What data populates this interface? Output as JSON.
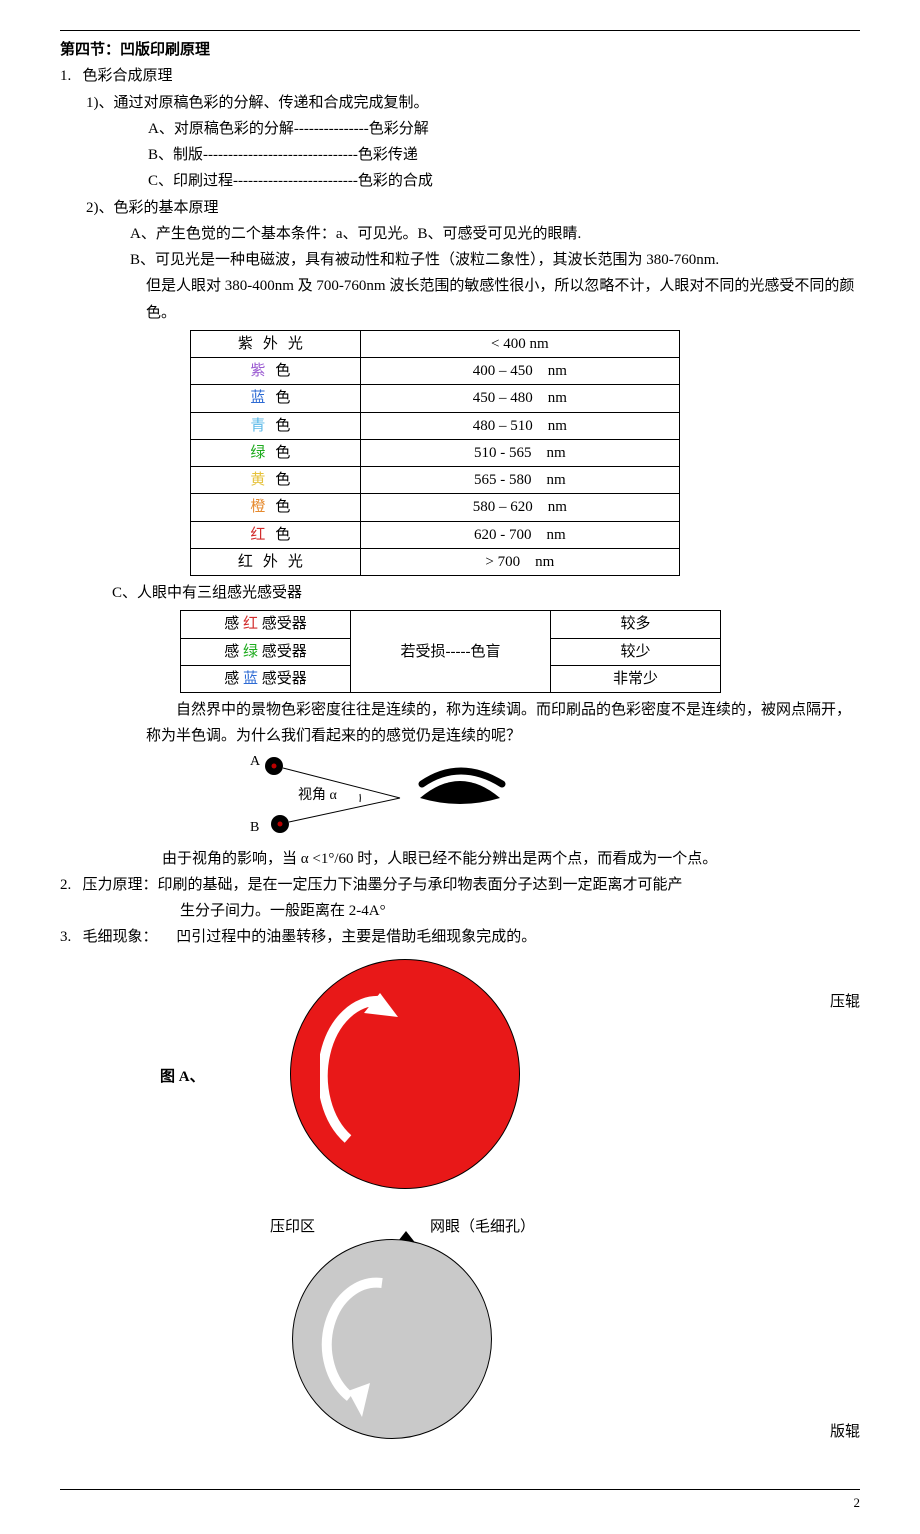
{
  "section_title": "第四节：凹版印刷原理",
  "item1_num": "1.",
  "item1_head": "色彩合成原理",
  "item1_1": "1)、通过对原稿色彩的分解、传递和合成完成复制。",
  "item1_1_A": "A、对原稿色彩的分解---------------色彩分解",
  "item1_1_B": "B、制版-------------------------------色彩传递",
  "item1_1_C": "C、印刷过程-------------------------色彩的合成",
  "item1_2": "2)、色彩的基本原理",
  "item1_2_A": "A、产生色觉的二个基本条件：a、可见光。B、可感受可见光的眼睛.",
  "item1_2_B_l1": "B、可见光是一种电磁波，具有被动性和粒子性（波粒二象性），其波长范围为 380-760nm.",
  "item1_2_B_l2": "但是人眼对 380-400nm 及 700-760nm 波长范围的敏感性很小，所以忽略不计，人眼对不同的光感受不同的颜色。",
  "color_table": {
    "rows": [
      {
        "label_pre": "紫外",
        "label_post": "光",
        "color": "#000000",
        "range": "< 400 nm"
      },
      {
        "label_pre": "紫",
        "label_post": "色",
        "color": "#9a5ad1",
        "range": "400 – 450 nm"
      },
      {
        "label_pre": "蓝",
        "label_post": "色",
        "color": "#2e6bd4",
        "range": "450 – 480 nm"
      },
      {
        "label_pre": "青",
        "label_post": "色",
        "color": "#5bb9e8",
        "range": "480 – 510 nm"
      },
      {
        "label_pre": "绿",
        "label_post": "色",
        "color": "#1eab1e",
        "range": "510 - 565 nm"
      },
      {
        "label_pre": "黄",
        "label_post": "色",
        "color": "#e6c23c",
        "range": "565 - 580 nm"
      },
      {
        "label_pre": "橙",
        "label_post": "色",
        "color": "#e68a2e",
        "range": "580 – 620 nm"
      },
      {
        "label_pre": "红",
        "label_post": "色",
        "color": "#d22d2d",
        "range": "620 - 700 nm"
      },
      {
        "label_pre": "红外",
        "label_post": "光",
        "color": "#000000",
        "range": "> 700 nm"
      }
    ]
  },
  "item1_2_C": "C、人眼中有三组感光感受器",
  "receptor_table": {
    "mid_text": "若受损-----色盲",
    "rows": [
      {
        "pre": "感 ",
        "color": "#d22d2d",
        "mid": "红",
        "post": " 感受器",
        "amt": "较多"
      },
      {
        "pre": "感 ",
        "color": "#1eab1e",
        "mid": "绿",
        "post": " 感受器",
        "amt": "较少"
      },
      {
        "pre": "感 ",
        "color": "#2e6bd4",
        "mid": "蓝",
        "post": " 感受器",
        "amt": "非常少"
      }
    ]
  },
  "para_nature": "自然界中的景物色彩密度往往是连续的，称为连续调。而印刷品的色彩密度不是连续的，被网点隔开，称为半色调。为什么我们看起来的的感觉仍是连续的呢？",
  "eye_A": "A",
  "eye_B": "B",
  "eye_angle": "视角 α",
  "para_angle": "由于视角的影响，当 α <1°/60 时，人眼已经不能分辨出是两个点，而看成为一个点。",
  "item2_num": "2.",
  "item2_l1": "压力原理：印刷的基础，是在一定压力下油墨分子与承印物表面分子达到一定距离才可能产",
  "item2_l2": "生分子间力。一般距离在 2-4A°",
  "item3_num": "3.",
  "item3_head": "毛细现象：",
  "item3_body": "凹引过程中的油墨转移，主要是借助毛细现象完成的。",
  "fig_A": "图 A、",
  "lab_yagun": "压辊",
  "lab_bangun": "版辊",
  "lab_yyq": "压印区",
  "lab_wy": "网眼（毛细孔）",
  "red_circle_color": "#e81818",
  "grey_circle_color": "#c9c9c9",
  "page_number": "2"
}
